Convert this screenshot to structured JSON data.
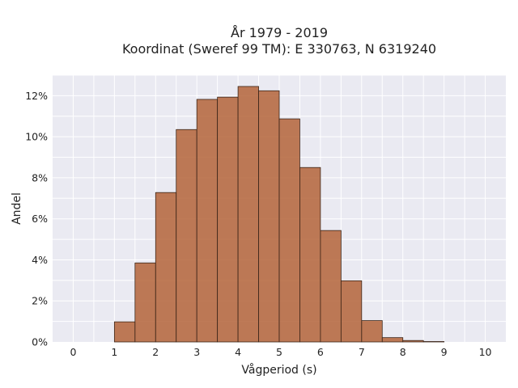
{
  "colors": {
    "bar_fill": "#b5653b",
    "bar_edge": "#3a2418",
    "plot_background": "#eaeaf2",
    "grid": "#ffffff"
  },
  "chart_data": {
    "type": "bar",
    "title": "År 1979 - 2019",
    "subtitle": "Koordinat (Sweref 99 TM): E 330763, N 6319240",
    "xlabel": "Vågperiod (s)",
    "ylabel": "Andel",
    "xlim": [
      -0.5,
      10.5
    ],
    "ylim": [
      0,
      0.13
    ],
    "xticks": [
      0,
      1,
      2,
      3,
      4,
      5,
      6,
      7,
      8,
      9,
      10
    ],
    "xtick_labels": [
      "0",
      "1",
      "2",
      "3",
      "4",
      "5",
      "6",
      "7",
      "8",
      "9",
      "10"
    ],
    "yticks": [
      0,
      0.02,
      0.04,
      0.06,
      0.08,
      0.1,
      0.12
    ],
    "ytick_labels": [
      "0%",
      "2%",
      "4%",
      "6%",
      "8%",
      "10%",
      "12%"
    ],
    "grid": true,
    "bin_width": 0.5,
    "bins": [
      {
        "start": 1.0,
        "end": 1.5,
        "value": 0.0098
      },
      {
        "start": 1.5,
        "end": 2.0,
        "value": 0.0385
      },
      {
        "start": 2.0,
        "end": 2.5,
        "value": 0.0728
      },
      {
        "start": 2.5,
        "end": 3.0,
        "value": 0.1035
      },
      {
        "start": 3.0,
        "end": 3.5,
        "value": 0.1182
      },
      {
        "start": 3.5,
        "end": 4.0,
        "value": 0.1193
      },
      {
        "start": 4.0,
        "end": 4.5,
        "value": 0.1245
      },
      {
        "start": 4.5,
        "end": 5.0,
        "value": 0.1224
      },
      {
        "start": 5.0,
        "end": 5.5,
        "value": 0.1087
      },
      {
        "start": 5.5,
        "end": 6.0,
        "value": 0.085
      },
      {
        "start": 6.0,
        "end": 6.5,
        "value": 0.0543
      },
      {
        "start": 6.5,
        "end": 7.0,
        "value": 0.0298
      },
      {
        "start": 7.0,
        "end": 7.5,
        "value": 0.0104
      },
      {
        "start": 7.5,
        "end": 8.0,
        "value": 0.0021
      },
      {
        "start": 8.0,
        "end": 8.5,
        "value": 0.0007
      },
      {
        "start": 8.5,
        "end": 9.0,
        "value": 0.0002
      }
    ]
  }
}
